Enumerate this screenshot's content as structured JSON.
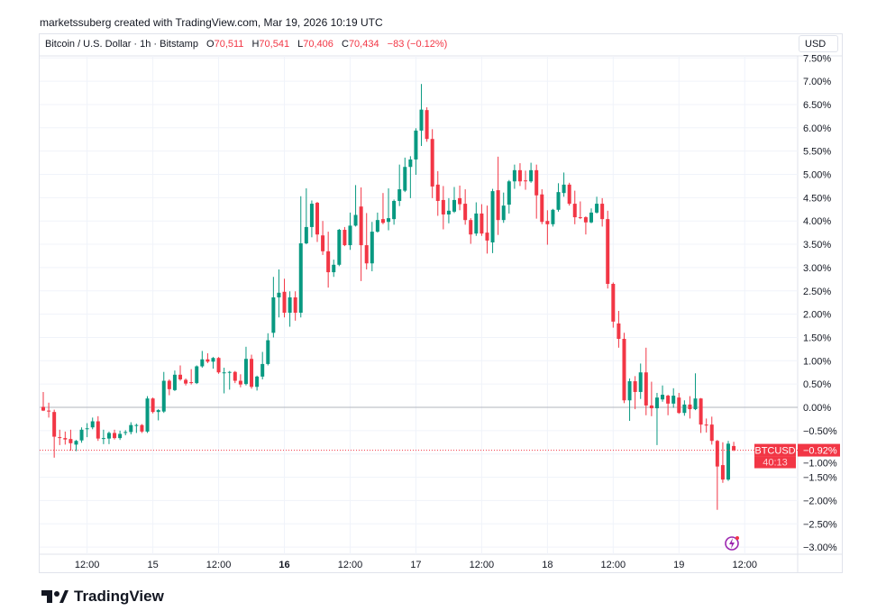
{
  "credit": "marketssuberg created with TradingView.com, Mar 19, 2026 10:19 UTC",
  "legend": {
    "symbol": "Bitcoin / U.S. Dollar · 1h · Bitstamp",
    "o_label": "O",
    "o": "70,511",
    "h_label": "H",
    "h": "70,541",
    "l_label": "L",
    "l": "70,406",
    "c_label": "C",
    "c": "70,434",
    "change": "−83 (−0.12%)"
  },
  "currency_button": "USD",
  "price_label": {
    "symbol": "BTCUSD",
    "value": "−0.92%",
    "countdown": "40:13"
  },
  "brand": "TradingView",
  "colors": {
    "up": "#089981",
    "down": "#f23645",
    "grid": "#f0f3fa",
    "zero_line": "#b2b5be"
  },
  "chart_data": {
    "type": "candlestick",
    "interval": "1h",
    "y_unit": "%",
    "ylim": [
      -3.25,
      7.6
    ],
    "grid": true,
    "y_ticks": [
      "7.50%",
      "7.00%",
      "6.50%",
      "6.00%",
      "5.50%",
      "5.00%",
      "4.50%",
      "4.00%",
      "3.50%",
      "3.00%",
      "2.50%",
      "2.00%",
      "1.50%",
      "1.00%",
      "0.50%",
      "0.00%",
      "−0.50%",
      "−1.00%",
      "−1.50%",
      "−2.00%",
      "−2.50%",
      "−3.00%"
    ],
    "y_tick_values": [
      7.5,
      7,
      6.5,
      6,
      5.5,
      5,
      4.5,
      4,
      3.5,
      3,
      2.5,
      2,
      1.5,
      1,
      0.5,
      0,
      -0.5,
      -1,
      -1.5,
      -2,
      -2.5,
      -3
    ],
    "x_ticks": [
      {
        "label": "12:00",
        "hour": 8,
        "bold": false
      },
      {
        "label": "15",
        "hour": 20,
        "bold": false
      },
      {
        "label": "12:00",
        "hour": 32,
        "bold": false
      },
      {
        "label": "16",
        "hour": 44,
        "bold": true
      },
      {
        "label": "12:00",
        "hour": 56,
        "bold": false
      },
      {
        "label": "17",
        "hour": 68,
        "bold": false
      },
      {
        "label": "12:00",
        "hour": 80,
        "bold": false
      },
      {
        "label": "18",
        "hour": 92,
        "bold": false
      },
      {
        "label": "12:00",
        "hour": 104,
        "bold": false
      },
      {
        "label": "19",
        "hour": 116,
        "bold": false
      },
      {
        "label": "12:00",
        "hour": 128,
        "bold": false
      }
    ],
    "last_value": -0.92,
    "candles_ohlc": [
      [
        0.01,
        0.33,
        -0.08,
        -0.07
      ],
      [
        -0.07,
        0.1,
        -0.22,
        -0.09
      ],
      [
        -0.1,
        -0.05,
        -1.08,
        -0.63
      ],
      [
        -0.64,
        -0.48,
        -0.81,
        -0.65
      ],
      [
        -0.66,
        -0.52,
        -0.8,
        -0.69
      ],
      [
        -0.68,
        -0.48,
        -0.93,
        -0.77
      ],
      [
        -0.8,
        -0.7,
        -0.94,
        -0.72
      ],
      [
        -0.71,
        -0.43,
        -0.76,
        -0.48
      ],
      [
        -0.46,
        -0.34,
        -0.64,
        -0.45
      ],
      [
        -0.43,
        -0.22,
        -0.47,
        -0.3
      ],
      [
        -0.3,
        -0.19,
        -0.72,
        -0.67
      ],
      [
        -0.66,
        -0.48,
        -0.79,
        -0.66
      ],
      [
        -0.67,
        -0.52,
        -0.79,
        -0.55
      ],
      [
        -0.55,
        -0.48,
        -0.69,
        -0.66
      ],
      [
        -0.66,
        -0.5,
        -0.7,
        -0.57
      ],
      [
        -0.55,
        -0.49,
        -0.6,
        -0.53
      ],
      [
        -0.53,
        -0.32,
        -0.58,
        -0.38
      ],
      [
        -0.38,
        -0.35,
        -0.55,
        -0.38
      ],
      [
        -0.38,
        -0.36,
        -0.55,
        -0.52
      ],
      [
        -0.52,
        0.24,
        -0.55,
        0.19
      ],
      [
        0.19,
        0.21,
        -0.13,
        -0.1
      ],
      [
        -0.1,
        -0.04,
        -0.28,
        -0.06
      ],
      [
        -0.09,
        0.76,
        -0.12,
        0.57
      ],
      [
        0.57,
        0.6,
        0.26,
        0.39
      ],
      [
        0.37,
        0.79,
        0.35,
        0.7
      ],
      [
        0.7,
        0.9,
        0.57,
        0.6
      ],
      [
        0.59,
        0.62,
        0.47,
        0.51
      ],
      [
        0.54,
        0.82,
        0.49,
        0.53
      ],
      [
        0.52,
        0.9,
        0.5,
        0.88
      ],
      [
        0.88,
        1.21,
        0.85,
        1.03
      ],
      [
        1.03,
        1.16,
        0.95,
        0.98
      ],
      [
        0.98,
        1.08,
        0.83,
        1.06
      ],
      [
        1.06,
        1.08,
        0.72,
        0.75
      ],
      [
        0.75,
        0.85,
        0.3,
        0.75
      ],
      [
        0.75,
        0.78,
        0.38,
        0.76
      ],
      [
        0.76,
        0.78,
        0.52,
        0.57
      ],
      [
        0.57,
        0.71,
        0.43,
        0.49
      ],
      [
        0.5,
        1.3,
        0.47,
        1.04
      ],
      [
        1.04,
        1.13,
        0.4,
        0.44
      ],
      [
        0.44,
        0.68,
        0.36,
        0.66
      ],
      [
        0.66,
        1.19,
        0.6,
        0.93
      ],
      [
        0.93,
        1.59,
        0.9,
        1.44
      ],
      [
        1.6,
        2.8,
        1.5,
        2.36
      ],
      [
        2.36,
        2.96,
        1.93,
        2.46
      ],
      [
        2.48,
        2.76,
        1.93,
        2.03
      ],
      [
        2.03,
        2.49,
        1.73,
        2.36
      ],
      [
        2.36,
        2.49,
        1.86,
        2.03
      ],
      [
        2.03,
        4.53,
        1.93,
        3.52
      ],
      [
        3.52,
        4.7,
        3.5,
        3.87
      ],
      [
        3.87,
        4.44,
        3.65,
        4.37
      ],
      [
        4.39,
        4.41,
        3.55,
        3.71
      ],
      [
        3.69,
        4.0,
        3.27,
        3.35
      ],
      [
        3.35,
        3.77,
        2.57,
        2.9
      ],
      [
        2.9,
        3.17,
        2.8,
        3.06
      ],
      [
        3.06,
        3.83,
        3.03,
        3.81
      ],
      [
        3.81,
        3.87,
        3.46,
        3.48
      ],
      [
        3.48,
        4.18,
        3.38,
        3.9
      ],
      [
        3.9,
        4.77,
        3.88,
        4.13
      ],
      [
        4.31,
        4.72,
        2.71,
        3.48
      ],
      [
        3.48,
        4.17,
        2.96,
        3.09
      ],
      [
        3.09,
        3.98,
        2.92,
        3.77
      ],
      [
        3.77,
        4.18,
        3.75,
        4.02
      ],
      [
        4.04,
        4.6,
        3.93,
        3.96
      ],
      [
        3.98,
        4.7,
        3.8,
        4.06
      ],
      [
        4.04,
        4.46,
        3.92,
        4.43
      ],
      [
        4.43,
        5.21,
        4.32,
        4.68
      ],
      [
        4.65,
        5.36,
        4.62,
        5.16
      ],
      [
        5.16,
        5.39,
        4.49,
        5.32
      ],
      [
        5.32,
        5.99,
        4.99,
        5.94
      ],
      [
        5.94,
        6.94,
        5.61,
        6.39
      ],
      [
        6.38,
        6.44,
        5.7,
        5.76
      ],
      [
        5.76,
        5.97,
        4.49,
        4.74
      ],
      [
        4.78,
        5.07,
        4.11,
        4.43
      ],
      [
        4.45,
        4.75,
        3.82,
        4.14
      ],
      [
        4.14,
        4.49,
        3.95,
        4.22
      ],
      [
        4.2,
        4.73,
        4.17,
        4.45
      ],
      [
        4.49,
        4.76,
        4.23,
        4.36
      ],
      [
        4.37,
        4.68,
        3.92,
        4.02
      ],
      [
        4.02,
        4.06,
        3.51,
        3.71
      ],
      [
        3.73,
        4.4,
        3.68,
        4.16
      ],
      [
        4.16,
        4.36,
        3.68,
        3.73
      ],
      [
        3.75,
        4.33,
        3.3,
        3.58
      ],
      [
        3.54,
        4.69,
        3.31,
        4.64
      ],
      [
        4.66,
        5.38,
        3.7,
        4.02
      ],
      [
        4.02,
        4.61,
        3.96,
        4.33
      ],
      [
        4.35,
        4.88,
        4.16,
        4.85
      ],
      [
        4.85,
        5.21,
        4.69,
        5.09
      ],
      [
        5.09,
        5.24,
        4.75,
        4.85
      ],
      [
        4.87,
        5.08,
        4.67,
        4.86
      ],
      [
        4.85,
        5.25,
        4.82,
        5.09
      ],
      [
        5.09,
        5.21,
        4.05,
        4.55
      ],
      [
        4.57,
        4.68,
        3.93,
        3.98
      ],
      [
        4.0,
        4.23,
        3.49,
        3.93
      ],
      [
        3.93,
        4.26,
        3.88,
        4.24
      ],
      [
        4.24,
        4.81,
        4.2,
        4.62
      ],
      [
        4.6,
        5.04,
        4.52,
        4.78
      ],
      [
        4.78,
        4.82,
        4.33,
        4.37
      ],
      [
        4.37,
        4.65,
        3.93,
        4.08
      ],
      [
        4.08,
        4.42,
        4.04,
        4.07
      ],
      [
        4.08,
        4.1,
        3.71,
        3.97
      ],
      [
        3.97,
        4.27,
        3.95,
        4.18
      ],
      [
        4.18,
        4.52,
        4.16,
        4.37
      ],
      [
        4.37,
        4.49,
        3.88,
        4.04
      ],
      [
        4.04,
        4.22,
        2.55,
        2.65
      ],
      [
        2.65,
        2.68,
        1.71,
        1.84
      ],
      [
        1.8,
        2.07,
        1.28,
        1.47
      ],
      [
        1.47,
        1.6,
        0.09,
        0.15
      ],
      [
        0.15,
        0.62,
        -0.29,
        0.56
      ],
      [
        0.56,
        0.67,
        -0.04,
        0.33
      ],
      [
        0.33,
        0.94,
        0.18,
        0.75
      ],
      [
        0.75,
        1.28,
        -0.17,
        0.04
      ],
      [
        0.04,
        0.55,
        -0.19,
        -0.02
      ],
      [
        -0.02,
        0.31,
        -0.81,
        0.21
      ],
      [
        0.17,
        0.47,
        0.12,
        0.27
      ],
      [
        0.25,
        0.27,
        -0.17,
        0.08
      ],
      [
        0.08,
        0.41,
        -0.01,
        0.25
      ],
      [
        0.21,
        0.31,
        -0.14,
        -0.12
      ],
      [
        -0.12,
        0.15,
        -0.18,
        0.06
      ],
      [
        0.06,
        0.24,
        -0.24,
        -0.04
      ],
      [
        -0.04,
        0.73,
        -0.06,
        0.19
      ],
      [
        0.19,
        0.2,
        -0.55,
        -0.37
      ],
      [
        -0.37,
        -0.24,
        -0.54,
        -0.39
      ],
      [
        -0.37,
        -0.2,
        -0.8,
        -0.72
      ],
      [
        -0.72,
        -0.7,
        -2.2,
        -1.27
      ],
      [
        -1.24,
        -0.75,
        -1.62,
        -1.55
      ],
      [
        -1.55,
        -0.72,
        -1.58,
        -0.78
      ],
      [
        -0.83,
        -0.74,
        -0.94,
        -0.92
      ]
    ]
  }
}
